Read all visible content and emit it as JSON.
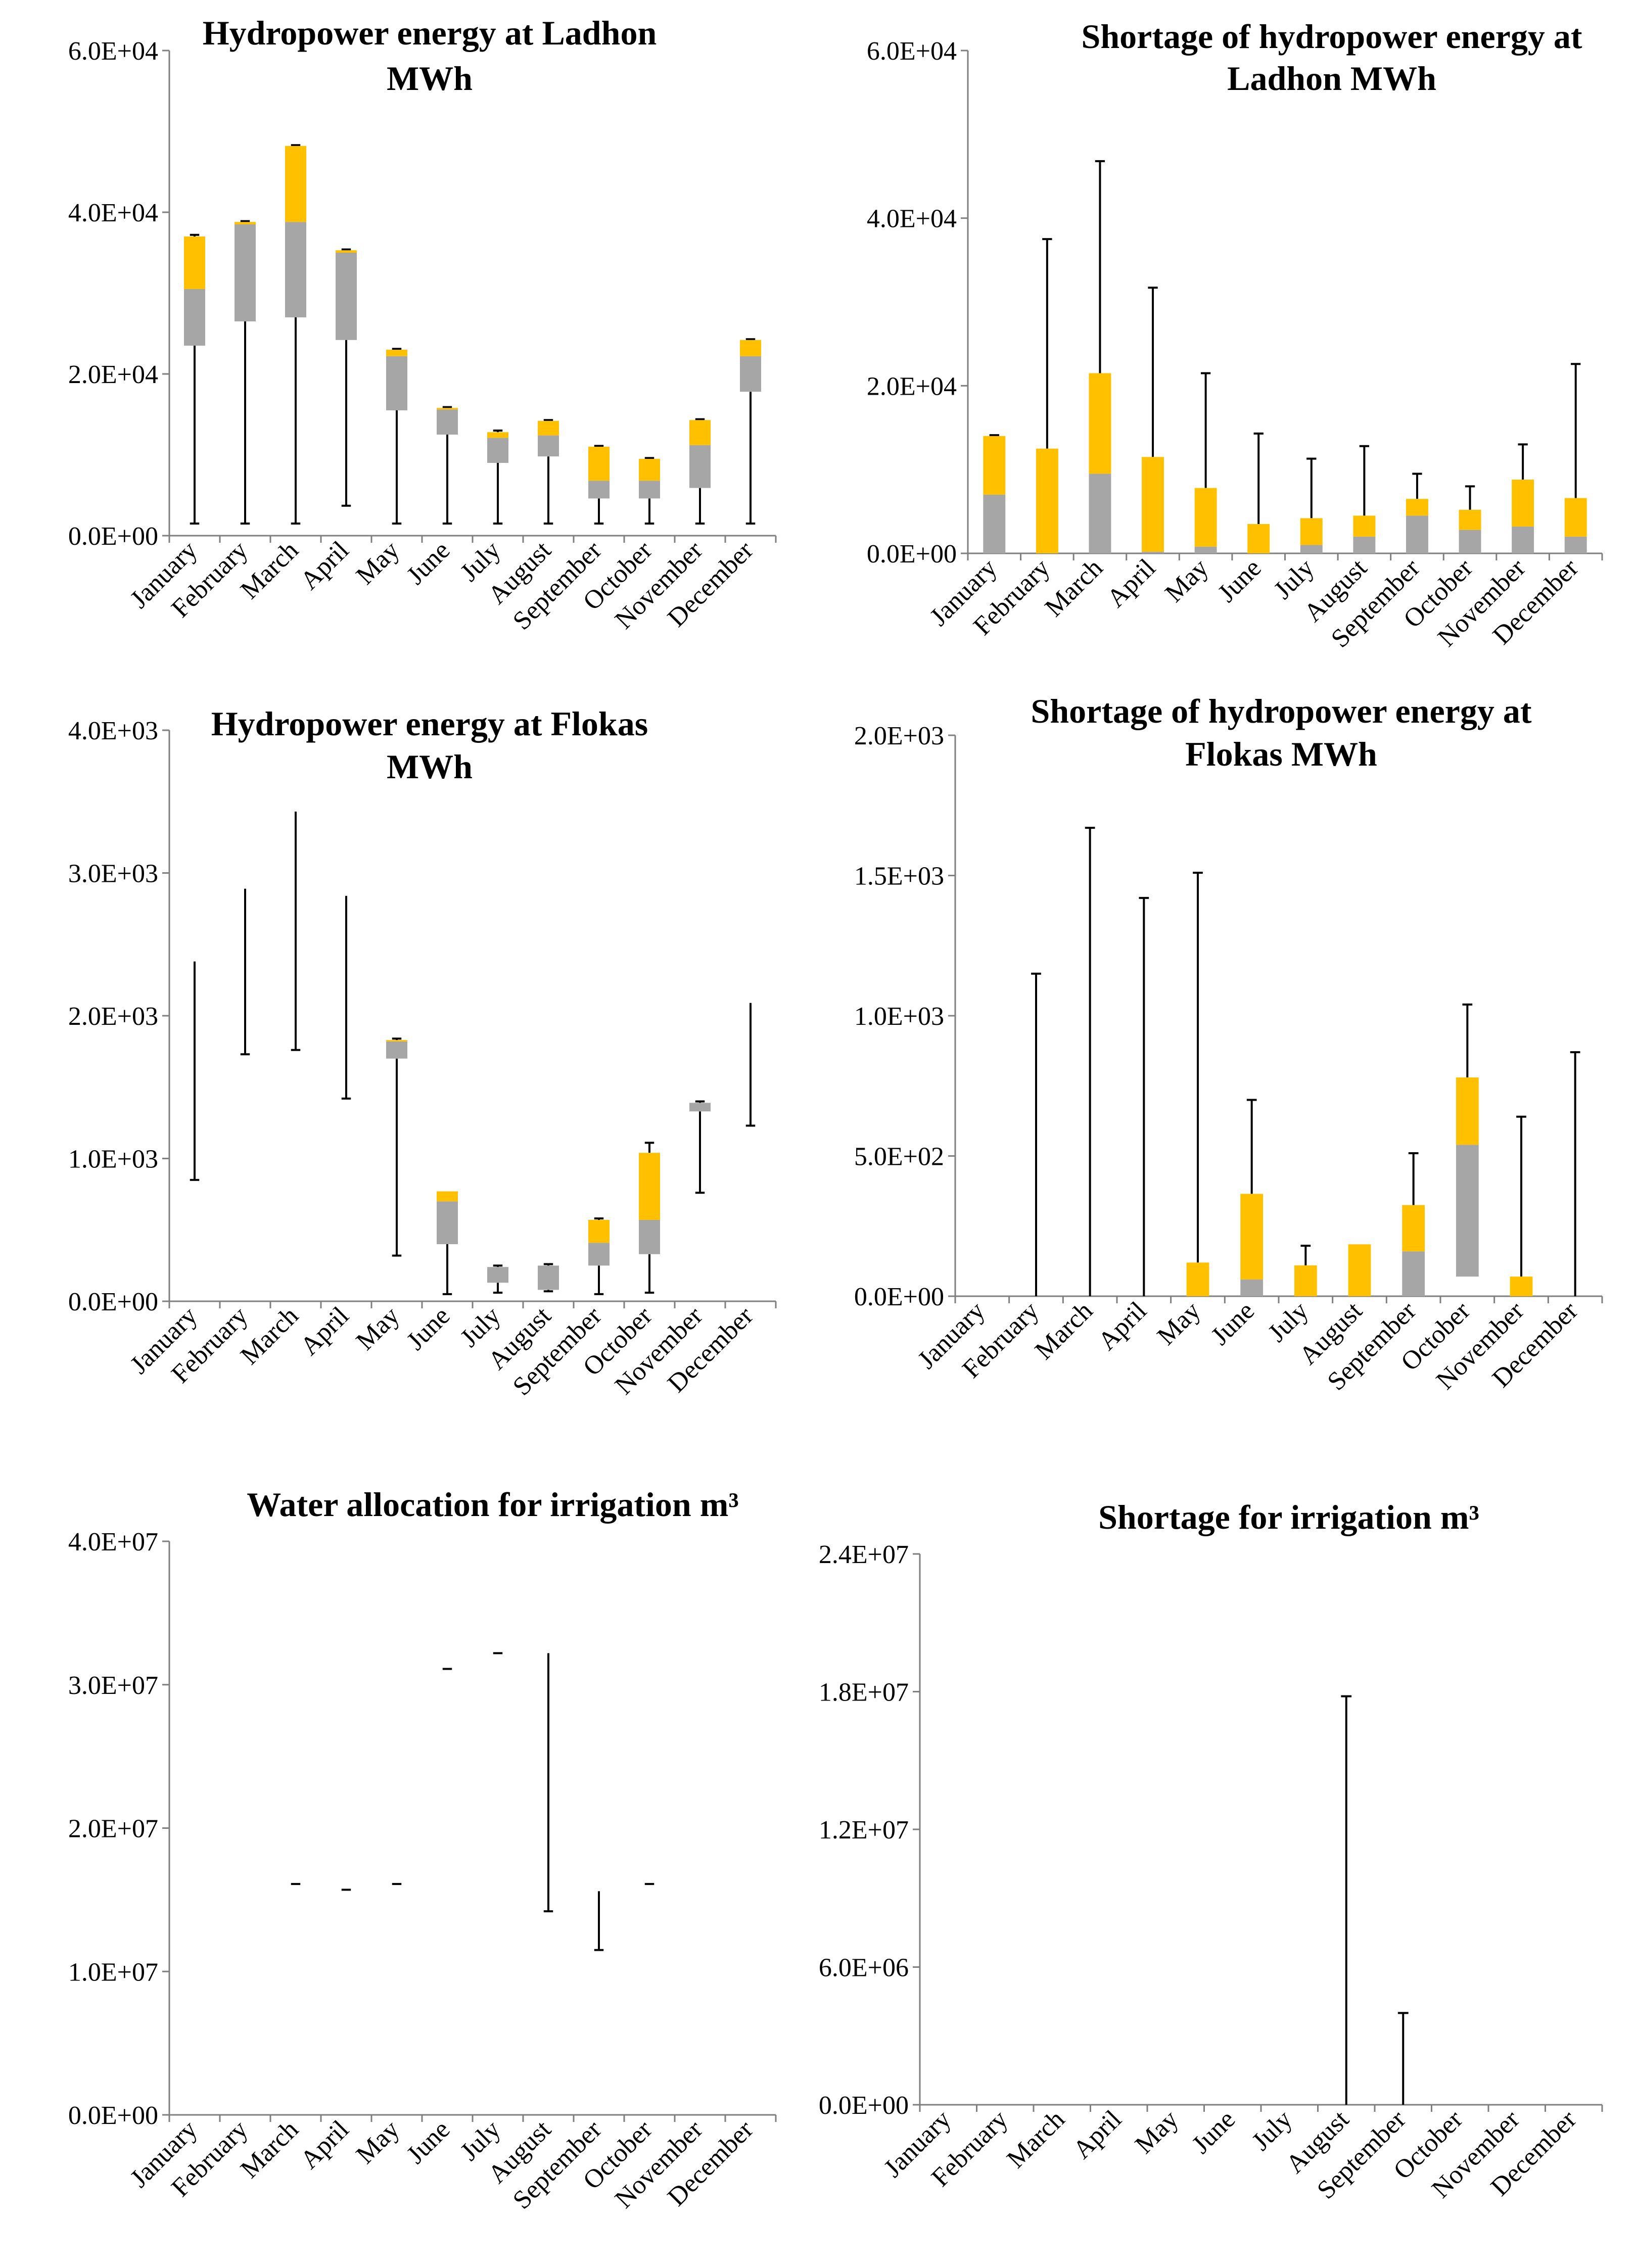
{
  "colors": {
    "lower_box": "#a6a6a6",
    "upper_box": "#ffc000",
    "whisker": "#000000",
    "axis": "#7f7f7f"
  },
  "chart_data": [
    {
      "type": "box",
      "title_lines": [
        "Hydropower energy at Ladhon",
        "MWh"
      ],
      "categories": [
        "January",
        "February",
        "March",
        "April",
        "May",
        "June",
        "July",
        "August",
        "September",
        "October",
        "November",
        "December"
      ],
      "yticks": [
        "0.0E+00",
        "2.0E+04",
        "4.0E+04",
        "6.0E+04"
      ],
      "ylim": [
        0,
        60000
      ],
      "min": [
        1500,
        1500,
        1500,
        3700,
        1500,
        1500,
        1500,
        1500,
        1500,
        1500,
        1500,
        1500
      ],
      "q1": [
        23500,
        26500,
        27000,
        24200,
        15500,
        12500,
        9000,
        9800,
        4600,
        4600,
        5900,
        17800
      ],
      "median": [
        30500,
        38500,
        38800,
        35000,
        22200,
        15600,
        12100,
        12400,
        6800,
        6800,
        11200,
        22200
      ],
      "q3": [
        37000,
        38800,
        48200,
        35300,
        23000,
        15800,
        12800,
        14200,
        11000,
        9500,
        14300,
        24200
      ],
      "max": [
        37200,
        38900,
        48300,
        35400,
        23100,
        15900,
        13000,
        14300,
        11100,
        9600,
        14400,
        24300
      ]
    },
    {
      "type": "box",
      "title_lines": [
        "Shortage of hydropower energy at",
        "Ladhon MWh"
      ],
      "categories": [
        "January",
        "February",
        "March",
        "April",
        "May",
        "June",
        "July",
        "August",
        "September",
        "October",
        "November",
        "December"
      ],
      "yticks": [
        "0.0E+00",
        "2.0E+04",
        "4.0E+04",
        "6.0E+04"
      ],
      "ylim": [
        0,
        60000
      ],
      "min": [
        0,
        0,
        0,
        0,
        0,
        0,
        0,
        0,
        0,
        0,
        0,
        0
      ],
      "q1": [
        0,
        0,
        0,
        0,
        0,
        0,
        0,
        0,
        0,
        0,
        0,
        0
      ],
      "median": [
        7000,
        0,
        9500,
        200,
        800,
        0,
        1000,
        2000,
        4500,
        2800,
        3200,
        2000
      ],
      "q3": [
        14000,
        12500,
        21500,
        11500,
        7800,
        3500,
        4200,
        4500,
        6500,
        5200,
        8800,
        6600
      ],
      "max": [
        14100,
        37500,
        46800,
        31700,
        21500,
        14300,
        11300,
        12800,
        9500,
        8000,
        13000,
        22600
      ]
    },
    {
      "type": "box",
      "title_lines": [
        "Hydropower energy at Flokas",
        "MWh"
      ],
      "categories": [
        "January",
        "February",
        "March",
        "April",
        "May",
        "June",
        "July",
        "August",
        "September",
        "October",
        "November",
        "December"
      ],
      "yticks": [
        "0.0E+00",
        "1.0E+03",
        "2.0E+03",
        "3.0E+03",
        "4.0E+03"
      ],
      "ylim": [
        0,
        4000
      ],
      "min": [
        850,
        1730,
        1760,
        1420,
        320,
        50,
        60,
        70,
        50,
        60,
        760,
        1230
      ],
      "q1": [
        2380,
        2890,
        3430,
        2840,
        1700,
        400,
        130,
        80,
        250,
        330,
        1330,
        2090
      ],
      "median": [
        2380,
        2890,
        3430,
        2840,
        1820,
        700,
        240,
        250,
        410,
        570,
        1390,
        2090
      ],
      "q3": [
        2380,
        2890,
        3430,
        2840,
        1830,
        770,
        240,
        250,
        570,
        1040,
        1390,
        2090
      ],
      "max": [
        2380,
        2890,
        3430,
        2840,
        1840,
        770,
        250,
        260,
        580,
        1110,
        1400,
        2090
      ]
    },
    {
      "type": "box",
      "title_lines": [
        "Shortage of hydropower energy at",
        "Flokas MWh"
      ],
      "categories": [
        "January",
        "February",
        "March",
        "April",
        "May",
        "June",
        "July",
        "August",
        "September",
        "October",
        "November",
        "December"
      ],
      "yticks": [
        "0.0E+00",
        "5.0E+02",
        "1.0E+03",
        "1.5E+03",
        "2.0E+03"
      ],
      "ylim": [
        0,
        2000
      ],
      "min": [
        0,
        0,
        0,
        0,
        0,
        0,
        0,
        0,
        0,
        70,
        0,
        0
      ],
      "q1": [
        0,
        0,
        0,
        0,
        0,
        0,
        0,
        0,
        0,
        70,
        0,
        0
      ],
      "median": [
        0,
        0,
        0,
        0,
        0,
        60,
        0,
        0,
        160,
        540,
        0,
        0
      ],
      "q3": [
        0,
        0,
        0,
        0,
        120,
        365,
        110,
        185,
        325,
        780,
        70,
        0
      ],
      "max": [
        0,
        1150,
        1670,
        1420,
        1510,
        700,
        180,
        185,
        510,
        1040,
        640,
        870
      ]
    },
    {
      "type": "box",
      "title_lines": [
        "Water allocation for irrigation m³"
      ],
      "categories": [
        "January",
        "February",
        "March",
        "April",
        "May",
        "June",
        "July",
        "August",
        "September",
        "October",
        "November",
        "December"
      ],
      "yticks": [
        "0.0E+00",
        "1.0E+07",
        "2.0E+07",
        "3.0E+07",
        "4.0E+07"
      ],
      "ylim": [
        0,
        40000000
      ],
      "min": [
        0,
        0,
        16100000,
        15700000,
        16100000,
        31100000,
        32200000,
        14200000,
        11500000,
        16100000,
        0,
        0
      ],
      "q1": [
        0,
        0,
        16100000,
        15700000,
        16100000,
        31100000,
        32200000,
        32200000,
        15600000,
        16100000,
        0,
        0
      ],
      "median": [
        0,
        0,
        16100000,
        15700000,
        16100000,
        31100000,
        32200000,
        32200000,
        15600000,
        16100000,
        0,
        0
      ],
      "q3": [
        0,
        0,
        16100000,
        15700000,
        16100000,
        31100000,
        32200000,
        32200000,
        15600000,
        16100000,
        0,
        0
      ],
      "max": [
        0,
        0,
        16100000,
        15700000,
        16100000,
        31100000,
        32200000,
        32200000,
        15600000,
        16100000,
        0,
        0
      ]
    },
    {
      "type": "box",
      "title_lines": [
        "Shortage for irrigation m³"
      ],
      "categories": [
        "January",
        "February",
        "March",
        "April",
        "May",
        "June",
        "July",
        "August",
        "September",
        "October",
        "November",
        "December"
      ],
      "yticks": [
        "0.0E+00",
        "6.0E+06",
        "1.2E+07",
        "1.8E+07",
        "2.4E+07"
      ],
      "ylim": [
        0,
        24000000
      ],
      "min": [
        0,
        0,
        0,
        0,
        0,
        0,
        0,
        0,
        0,
        0,
        0,
        0
      ],
      "q1": [
        0,
        0,
        0,
        0,
        0,
        0,
        0,
        0,
        0,
        0,
        0,
        0
      ],
      "median": [
        0,
        0,
        0,
        0,
        0,
        0,
        0,
        0,
        0,
        0,
        0,
        0
      ],
      "q3": [
        0,
        0,
        0,
        0,
        0,
        0,
        0,
        0,
        0,
        0,
        0,
        0
      ],
      "max": [
        0,
        0,
        0,
        0,
        0,
        0,
        0,
        17800000,
        4000000,
        0,
        0,
        0
      ]
    }
  ]
}
